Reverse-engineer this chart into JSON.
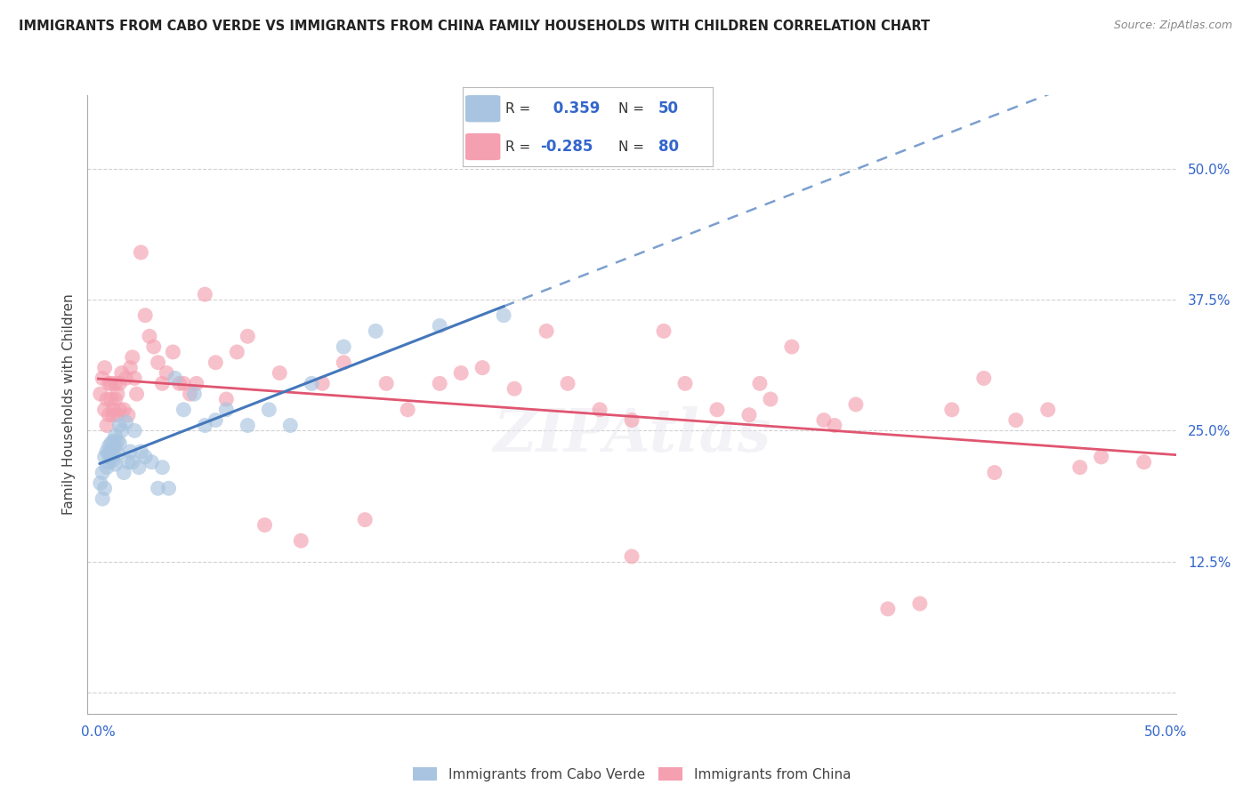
{
  "title": "IMMIGRANTS FROM CABO VERDE VS IMMIGRANTS FROM CHINA FAMILY HOUSEHOLDS WITH CHILDREN CORRELATION CHART",
  "source": "Source: ZipAtlas.com",
  "ylabel": "Family Households with Children",
  "xlim": [
    -0.005,
    0.505
  ],
  "ylim": [
    -0.02,
    0.57
  ],
  "ytick_vals": [
    0.0,
    0.125,
    0.25,
    0.375,
    0.5
  ],
  "ytick_labels": [
    "",
    "12.5%",
    "25.0%",
    "37.5%",
    "50.0%"
  ],
  "xtick_vals": [
    0.0,
    0.05,
    0.1,
    0.15,
    0.2,
    0.25,
    0.3,
    0.35,
    0.4,
    0.45,
    0.5
  ],
  "xtick_labels": [
    "0.0%",
    "",
    "",
    "",
    "",
    "",
    "",
    "",
    "",
    "",
    "50.0%"
  ],
  "cabo_verde_R": 0.359,
  "cabo_verde_N": 50,
  "china_R": -0.285,
  "china_N": 80,
  "cabo_verde_color": "#a8c4e0",
  "china_color": "#f4a0b0",
  "cabo_verde_line_color": "#4477bb",
  "china_line_color": "#e05570",
  "cabo_verde_x": [
    0.001,
    0.002,
    0.002,
    0.003,
    0.003,
    0.004,
    0.004,
    0.005,
    0.005,
    0.005,
    0.006,
    0.006,
    0.007,
    0.007,
    0.007,
    0.008,
    0.008,
    0.008,
    0.009,
    0.009,
    0.01,
    0.01,
    0.011,
    0.012,
    0.013,
    0.014,
    0.015,
    0.016,
    0.017,
    0.019,
    0.02,
    0.022,
    0.025,
    0.028,
    0.03,
    0.033,
    0.036,
    0.04,
    0.045,
    0.05,
    0.055,
    0.06,
    0.07,
    0.08,
    0.09,
    0.1,
    0.115,
    0.13,
    0.16,
    0.19
  ],
  "cabo_verde_y": [
    0.2,
    0.185,
    0.21,
    0.195,
    0.225,
    0.215,
    0.23,
    0.22,
    0.228,
    0.235,
    0.225,
    0.238,
    0.228,
    0.24,
    0.222,
    0.235,
    0.218,
    0.245,
    0.24,
    0.228,
    0.238,
    0.255,
    0.25,
    0.21,
    0.258,
    0.22,
    0.23,
    0.22,
    0.25,
    0.215,
    0.23,
    0.225,
    0.22,
    0.195,
    0.215,
    0.195,
    0.3,
    0.27,
    0.285,
    0.255,
    0.26,
    0.27,
    0.255,
    0.27,
    0.255,
    0.295,
    0.33,
    0.345,
    0.35,
    0.36
  ],
  "china_x": [
    0.001,
    0.002,
    0.003,
    0.003,
    0.004,
    0.004,
    0.005,
    0.005,
    0.006,
    0.006,
    0.007,
    0.007,
    0.008,
    0.008,
    0.009,
    0.009,
    0.01,
    0.01,
    0.011,
    0.012,
    0.013,
    0.014,
    0.015,
    0.016,
    0.017,
    0.018,
    0.02,
    0.022,
    0.024,
    0.026,
    0.028,
    0.03,
    0.032,
    0.035,
    0.038,
    0.04,
    0.043,
    0.046,
    0.05,
    0.055,
    0.06,
    0.065,
    0.07,
    0.078,
    0.085,
    0.095,
    0.105,
    0.115,
    0.125,
    0.135,
    0.145,
    0.16,
    0.17,
    0.18,
    0.195,
    0.21,
    0.22,
    0.235,
    0.25,
    0.265,
    0.275,
    0.29,
    0.305,
    0.315,
    0.325,
    0.34,
    0.355,
    0.37,
    0.385,
    0.4,
    0.415,
    0.43,
    0.445,
    0.46,
    0.47,
    0.345,
    0.25,
    0.31,
    0.42,
    0.49
  ],
  "china_y": [
    0.285,
    0.3,
    0.31,
    0.27,
    0.255,
    0.28,
    0.265,
    0.295,
    0.28,
    0.295,
    0.265,
    0.27,
    0.28,
    0.295,
    0.285,
    0.265,
    0.27,
    0.295,
    0.305,
    0.27,
    0.3,
    0.265,
    0.31,
    0.32,
    0.3,
    0.285,
    0.42,
    0.36,
    0.34,
    0.33,
    0.315,
    0.295,
    0.305,
    0.325,
    0.295,
    0.295,
    0.285,
    0.295,
    0.38,
    0.315,
    0.28,
    0.325,
    0.34,
    0.16,
    0.305,
    0.145,
    0.295,
    0.315,
    0.165,
    0.295,
    0.27,
    0.295,
    0.305,
    0.31,
    0.29,
    0.345,
    0.295,
    0.27,
    0.13,
    0.345,
    0.295,
    0.27,
    0.265,
    0.28,
    0.33,
    0.26,
    0.275,
    0.08,
    0.085,
    0.27,
    0.3,
    0.26,
    0.27,
    0.215,
    0.225,
    0.255,
    0.26,
    0.295,
    0.21,
    0.22
  ],
  "background_color": "#ffffff",
  "grid_color": "#cccccc",
  "watermark": "ZIPAtlas"
}
